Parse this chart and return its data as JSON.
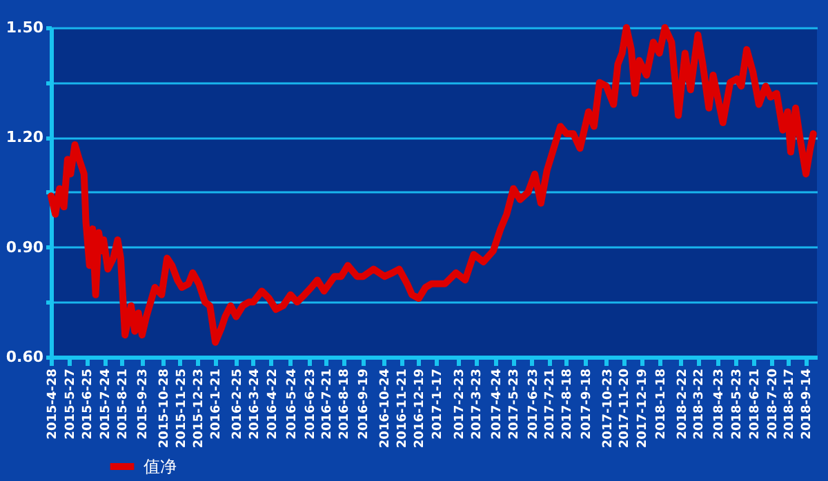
{
  "chart_data": {
    "type": "line",
    "x": [
      "2015-04-28",
      "2015-05-05",
      "2015-05-12",
      "2015-05-19",
      "2015-05-25",
      "2015-05-30",
      "2015-06-06",
      "2015-06-13",
      "2015-06-21",
      "2015-06-24",
      "2015-06-30",
      "2015-07-05",
      "2015-07-10",
      "2015-07-15",
      "2015-07-20",
      "2015-07-23",
      "2015-07-30",
      "2015-08-08",
      "2015-08-15",
      "2015-08-20",
      "2015-08-27",
      "2015-09-06",
      "2015-09-12",
      "2015-09-18",
      "2015-09-24",
      "2015-10-01",
      "2015-10-15",
      "2015-10-26",
      "2015-11-04",
      "2015-11-12",
      "2015-11-21",
      "2015-11-28",
      "2015-12-09",
      "2015-12-16",
      "2015-12-26",
      "2016-01-05",
      "2016-01-13",
      "2016-01-22",
      "2016-02-01",
      "2016-02-07",
      "2016-02-16",
      "2016-02-25",
      "2016-03-07",
      "2016-03-17",
      "2016-03-24",
      "2016-04-07",
      "2016-04-19",
      "2016-04-30",
      "2016-05-12",
      "2016-05-24",
      "2016-06-04",
      "2016-06-16",
      "2016-06-27",
      "2016-07-07",
      "2016-07-18",
      "2016-08-04",
      "2016-08-15",
      "2016-08-26",
      "2016-09-10",
      "2016-09-20",
      "2016-10-07",
      "2016-10-25",
      "2016-11-07",
      "2016-11-18",
      "2016-12-01",
      "2016-12-09",
      "2016-12-20",
      "2016-12-31",
      "2017-01-10",
      "2017-01-22",
      "2017-02-01",
      "2017-02-19",
      "2017-03-06",
      "2017-03-20",
      "2017-04-05",
      "2017-04-21",
      "2017-05-03",
      "2017-05-13",
      "2017-05-24",
      "2017-06-04",
      "2017-06-17",
      "2017-06-28",
      "2017-07-08",
      "2017-07-18",
      "2017-07-29",
      "2017-08-09",
      "2017-08-19",
      "2017-08-30",
      "2017-09-10",
      "2017-09-24",
      "2017-10-03",
      "2017-10-12",
      "2017-10-23",
      "2017-11-04",
      "2017-11-11",
      "2017-11-18",
      "2017-11-25",
      "2017-12-03",
      "2017-12-09",
      "2017-12-16",
      "2017-12-28",
      "2018-01-08",
      "2018-01-18",
      "2018-01-27",
      "2018-02-07",
      "2018-02-18",
      "2018-03-01",
      "2018-03-10",
      "2018-03-22",
      "2018-03-30",
      "2018-04-09",
      "2018-04-16",
      "2018-05-02",
      "2018-05-14",
      "2018-05-25",
      "2018-06-01",
      "2018-06-10",
      "2018-06-20",
      "2018-06-30",
      "2018-07-11",
      "2018-07-19",
      "2018-07-29",
      "2018-08-08",
      "2018-08-16",
      "2018-08-21",
      "2018-08-29",
      "2018-09-05",
      "2018-09-15",
      "2018-09-22",
      "2018-09-27"
    ],
    "series": [
      {
        "name": "值净",
        "color": "#dd0000",
        "values": [
          1.04,
          0.99,
          1.06,
          1.01,
          1.14,
          1.1,
          1.18,
          1.14,
          1.1,
          0.97,
          0.85,
          0.95,
          0.77,
          0.94,
          0.89,
          0.92,
          0.84,
          0.87,
          0.92,
          0.87,
          0.66,
          0.74,
          0.67,
          0.72,
          0.66,
          0.71,
          0.79,
          0.77,
          0.87,
          0.85,
          0.81,
          0.79,
          0.8,
          0.83,
          0.8,
          0.75,
          0.74,
          0.64,
          0.68,
          0.71,
          0.74,
          0.71,
          0.74,
          0.75,
          0.75,
          0.78,
          0.76,
          0.73,
          0.74,
          0.77,
          0.75,
          0.77,
          0.79,
          0.81,
          0.78,
          0.82,
          0.82,
          0.85,
          0.82,
          0.82,
          0.84,
          0.82,
          0.83,
          0.84,
          0.8,
          0.77,
          0.76,
          0.79,
          0.8,
          0.8,
          0.8,
          0.83,
          0.81,
          0.88,
          0.86,
          0.89,
          0.95,
          0.99,
          1.06,
          1.03,
          1.05,
          1.1,
          1.02,
          1.11,
          1.17,
          1.23,
          1.21,
          1.21,
          1.17,
          1.27,
          1.23,
          1.35,
          1.34,
          1.29,
          1.4,
          1.43,
          1.5,
          1.44,
          1.32,
          1.41,
          1.37,
          1.46,
          1.43,
          1.5,
          1.46,
          1.26,
          1.43,
          1.33,
          1.48,
          1.4,
          1.28,
          1.37,
          1.24,
          1.35,
          1.36,
          1.34,
          1.44,
          1.38,
          1.29,
          1.34,
          1.31,
          1.32,
          1.22,
          1.27,
          1.16,
          1.28,
          1.2,
          1.1,
          1.17,
          1.21
        ]
      }
    ],
    "xlim": [
      "2015-04-28",
      "2018-10-03"
    ],
    "xticks": [
      {
        "value": "2015-04-28",
        "label": "2015-4-28"
      },
      {
        "value": "2015-05-27",
        "label": "2015-5-27"
      },
      {
        "value": "2015-06-25",
        "label": "2015-6-25"
      },
      {
        "value": "2015-07-24",
        "label": "2015-7-24"
      },
      {
        "value": "2015-08-21",
        "label": "2015-8-21"
      },
      {
        "value": "2015-09-23",
        "label": "2015-9-23"
      },
      {
        "value": "2015-10-28",
        "label": "2015-10-28"
      },
      {
        "value": "2015-11-25",
        "label": "2015-11-25"
      },
      {
        "value": "2015-12-23",
        "label": "2015-12-23"
      },
      {
        "value": "2016-01-21",
        "label": "2016-1-21"
      },
      {
        "value": "2016-02-25",
        "label": "2016-2-25"
      },
      {
        "value": "2016-03-24",
        "label": "2016-3-24"
      },
      {
        "value": "2016-04-22",
        "label": "2016-4-22"
      },
      {
        "value": "2016-05-24",
        "label": "2016-5-24"
      },
      {
        "value": "2016-06-23",
        "label": "2016-6-23"
      },
      {
        "value": "2016-07-21",
        "label": "2016-7-21"
      },
      {
        "value": "2016-08-18",
        "label": "2016-8-18"
      },
      {
        "value": "2016-09-19",
        "label": "2016-9-19"
      },
      {
        "value": "2016-10-24",
        "label": "2016-10-24"
      },
      {
        "value": "2016-11-21",
        "label": "2016-11-21"
      },
      {
        "value": "2016-12-19",
        "label": "2016-12-19"
      },
      {
        "value": "2017-01-17",
        "label": "2017-1-17"
      },
      {
        "value": "2017-02-23",
        "label": "2017-2-23"
      },
      {
        "value": "2017-03-23",
        "label": "2017-3-23"
      },
      {
        "value": "2017-04-24",
        "label": "2017-4-24"
      },
      {
        "value": "2017-05-23",
        "label": "2017-5-23"
      },
      {
        "value": "2017-06-23",
        "label": "2017-6-23"
      },
      {
        "value": "2017-07-21",
        "label": "2017-7-21"
      },
      {
        "value": "2017-08-18",
        "label": "2017-8-18"
      },
      {
        "value": "2017-09-18",
        "label": "2017-9-18"
      },
      {
        "value": "2017-10-23",
        "label": "2017-10-23"
      },
      {
        "value": "2017-11-20",
        "label": "2017-11-20"
      },
      {
        "value": "2017-12-19",
        "label": "2017-12-19"
      },
      {
        "value": "2018-01-18",
        "label": "2018-1-18"
      },
      {
        "value": "2018-02-22",
        "label": "2018-2-22"
      },
      {
        "value": "2018-03-22",
        "label": "2018-3-22"
      },
      {
        "value": "2018-04-23",
        "label": "2018-4-23"
      },
      {
        "value": "2018-05-23",
        "label": "2018-5-23"
      },
      {
        "value": "2018-06-21",
        "label": "2018-6-21"
      },
      {
        "value": "2018-07-20",
        "label": "2018-7-20"
      },
      {
        "value": "2018-08-17",
        "label": "2018-8-17"
      },
      {
        "value": "2018-09-14",
        "label": "2018-9-14"
      }
    ],
    "ylim": [
      0.6,
      1.5
    ],
    "yticks": [
      {
        "value": 0.6,
        "label": "0.60"
      },
      {
        "value": 0.75,
        "label": null
      },
      {
        "value": 0.9,
        "label": "0.90"
      },
      {
        "value": 1.05,
        "label": null
      },
      {
        "value": 1.2,
        "label": "1.20"
      },
      {
        "value": 1.35,
        "label": null
      },
      {
        "value": 1.5,
        "label": "1.50"
      }
    ],
    "grid": "y",
    "legend": "bottom left",
    "marker": "none",
    "line_style": "solid"
  }
}
